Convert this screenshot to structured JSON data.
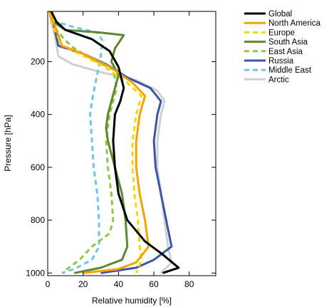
{
  "chart_data": {
    "type": "line",
    "title": "",
    "xlabel": "Relative humidity [%]",
    "ylabel": "Pressure [hPa]",
    "xlim": [
      0,
      95
    ],
    "ylim": [
      10,
      1010
    ],
    "y_inverted": true,
    "xticks": [
      0,
      20,
      40,
      60,
      80
    ],
    "yticks": [
      200,
      400,
      600,
      800,
      1000
    ],
    "legend_position": "outside-right",
    "grid": false,
    "series": [
      {
        "name": "Global",
        "color": "#000000",
        "dash": "solid",
        "points": [
          [
            2,
            10
          ],
          [
            5,
            50
          ],
          [
            10,
            80
          ],
          [
            25,
            115
          ],
          [
            35,
            160
          ],
          [
            40,
            220
          ],
          [
            43,
            300
          ],
          [
            41,
            350
          ],
          [
            38,
            400
          ],
          [
            37,
            500
          ],
          [
            38,
            600
          ],
          [
            40,
            700
          ],
          [
            45,
            800
          ],
          [
            55,
            880
          ],
          [
            65,
            930
          ],
          [
            74,
            980
          ],
          [
            65,
            1000
          ]
        ]
      },
      {
        "name": "North America",
        "color": "#F5A300",
        "dash": "solid",
        "points": [
          [
            1,
            10
          ],
          [
            3,
            50
          ],
          [
            5,
            80
          ],
          [
            8,
            140
          ],
          [
            20,
            170
          ],
          [
            35,
            220
          ],
          [
            48,
            280
          ],
          [
            55,
            330
          ],
          [
            52,
            400
          ],
          [
            50,
            500
          ],
          [
            50,
            600
          ],
          [
            52,
            700
          ],
          [
            55,
            800
          ],
          [
            57,
            900
          ],
          [
            50,
            960
          ],
          [
            40,
            985
          ],
          [
            20,
            1000
          ]
        ]
      },
      {
        "name": "Europe",
        "color": "#F5D800",
        "dash": "dashed",
        "points": [
          [
            1,
            10
          ],
          [
            2,
            50
          ],
          [
            4,
            80
          ],
          [
            8,
            140
          ],
          [
            18,
            170
          ],
          [
            32,
            220
          ],
          [
            45,
            280
          ],
          [
            53,
            330
          ],
          [
            50,
            400
          ],
          [
            48,
            500
          ],
          [
            48,
            600
          ],
          [
            49,
            700
          ],
          [
            51,
            800
          ],
          [
            52,
            900
          ],
          [
            53,
            950
          ],
          [
            50,
            1000
          ]
        ]
      },
      {
        "name": "South Asia",
        "color": "#5E8730",
        "dash": "solid",
        "points": [
          [
            1,
            10
          ],
          [
            3,
            50
          ],
          [
            10,
            80
          ],
          [
            30,
            90
          ],
          [
            43,
            100
          ],
          [
            38,
            150
          ],
          [
            36,
            200
          ],
          [
            40,
            250
          ],
          [
            34,
            400
          ],
          [
            33,
            450
          ],
          [
            34,
            500
          ],
          [
            38,
            600
          ],
          [
            42,
            700
          ],
          [
            44,
            800
          ],
          [
            45,
            900
          ],
          [
            42,
            950
          ],
          [
            30,
            980
          ],
          [
            15,
            1000
          ]
        ]
      },
      {
        "name": "East Asia",
        "color": "#8CC840",
        "dash": "dashed",
        "points": [
          [
            1,
            10
          ],
          [
            3,
            50
          ],
          [
            5,
            80
          ],
          [
            10,
            120
          ],
          [
            15,
            150
          ],
          [
            25,
            190
          ],
          [
            37,
            230
          ],
          [
            39,
            300
          ],
          [
            35,
            400
          ],
          [
            33,
            500
          ],
          [
            34,
            600
          ],
          [
            36,
            700
          ],
          [
            37,
            800
          ],
          [
            35,
            850
          ],
          [
            25,
            900
          ],
          [
            18,
            950
          ],
          [
            10,
            990
          ]
        ]
      },
      {
        "name": "Russia",
        "color": "#3A56A8",
        "dash": "solid",
        "points": [
          [
            1,
            10
          ],
          [
            3,
            50
          ],
          [
            4,
            80
          ],
          [
            6,
            140
          ],
          [
            20,
            170
          ],
          [
            33,
            210
          ],
          [
            45,
            260
          ],
          [
            58,
            300
          ],
          [
            64,
            350
          ],
          [
            62,
            400
          ],
          [
            60,
            500
          ],
          [
            61,
            600
          ],
          [
            64,
            700
          ],
          [
            67,
            800
          ],
          [
            70,
            900
          ],
          [
            60,
            950
          ],
          [
            50,
            980
          ],
          [
            30,
            1000
          ]
        ]
      },
      {
        "name": "Middle East",
        "color": "#6EC4EA",
        "dash": "dashed",
        "points": [
          [
            1,
            10
          ],
          [
            5,
            50
          ],
          [
            15,
            70
          ],
          [
            28,
            90
          ],
          [
            31,
            120
          ],
          [
            30,
            180
          ],
          [
            27,
            280
          ],
          [
            25,
            350
          ],
          [
            24,
            400
          ],
          [
            25,
            500
          ],
          [
            26,
            600
          ],
          [
            28,
            700
          ],
          [
            29,
            800
          ],
          [
            29,
            900
          ],
          [
            25,
            950
          ],
          [
            15,
            985
          ],
          [
            8,
            1000
          ]
        ]
      },
      {
        "name": "Arctic",
        "color": "#D0D0D0",
        "dash": "solid",
        "points": [
          [
            1,
            10
          ],
          [
            2,
            50
          ],
          [
            4,
            100
          ],
          [
            6,
            180
          ],
          [
            14,
            210
          ],
          [
            30,
            240
          ],
          [
            50,
            270
          ],
          [
            62,
            310
          ],
          [
            66,
            350
          ],
          [
            64,
            400
          ],
          [
            62,
            500
          ],
          [
            62,
            600
          ],
          [
            64,
            700
          ],
          [
            66,
            800
          ],
          [
            68,
            900
          ],
          [
            70,
            960
          ],
          [
            64,
            1000
          ]
        ]
      }
    ]
  }
}
